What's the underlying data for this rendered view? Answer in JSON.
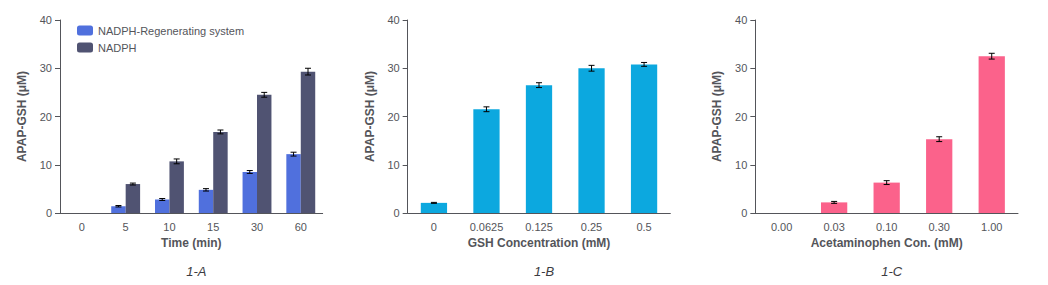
{
  "chart_data": [
    {
      "type": "bar",
      "title": "1-A",
      "xlabel": "Time (min)",
      "ylabel": "APAP-GSH (μM)",
      "categories": [
        "0",
        "5",
        "10",
        "15",
        "30",
        "60"
      ],
      "series": [
        {
          "name": "NADPH-Regenerating system",
          "values": [
            0,
            1.4,
            2.8,
            4.8,
            8.5,
            12.2
          ],
          "errors": [
            0,
            0.15,
            0.2,
            0.25,
            0.3,
            0.4
          ]
        },
        {
          "name": "NADPH",
          "values": [
            0,
            6.0,
            10.7,
            16.8,
            24.5,
            29.3
          ],
          "errors": [
            0,
            0.2,
            0.5,
            0.4,
            0.5,
            0.7
          ]
        }
      ],
      "ylim": [
        0,
        40
      ],
      "yticks": [
        0,
        10,
        20,
        30,
        40
      ],
      "grid": false,
      "legend": "upper left"
    },
    {
      "type": "bar",
      "title": "1-B",
      "xlabel": "GSH Concentration (mM)",
      "ylabel": "APAP-GSH (μM)",
      "categories": [
        "0",
        "0.0625",
        "0.125",
        "0.25",
        "0.5"
      ],
      "values": [
        2.1,
        21.5,
        26.5,
        30.0,
        30.8
      ],
      "errors": [
        0.1,
        0.5,
        0.5,
        0.6,
        0.4
      ],
      "ylim": [
        0,
        40
      ],
      "yticks": [
        0,
        10,
        20,
        30,
        40
      ],
      "grid": false
    },
    {
      "type": "bar",
      "title": "1-C",
      "xlabel": "Acetaminophen Con. (mM)",
      "ylabel": "APAP-GSH (μM)",
      "categories": [
        "0.00",
        "0.03",
        "0.10",
        "0.30",
        "1.00"
      ],
      "values": [
        0,
        2.2,
        6.3,
        15.3,
        32.5
      ],
      "errors": [
        0,
        0.2,
        0.4,
        0.5,
        0.6
      ],
      "ylim": [
        0,
        40
      ],
      "yticks": [
        0,
        10,
        20,
        30,
        40
      ],
      "grid": false
    }
  ]
}
